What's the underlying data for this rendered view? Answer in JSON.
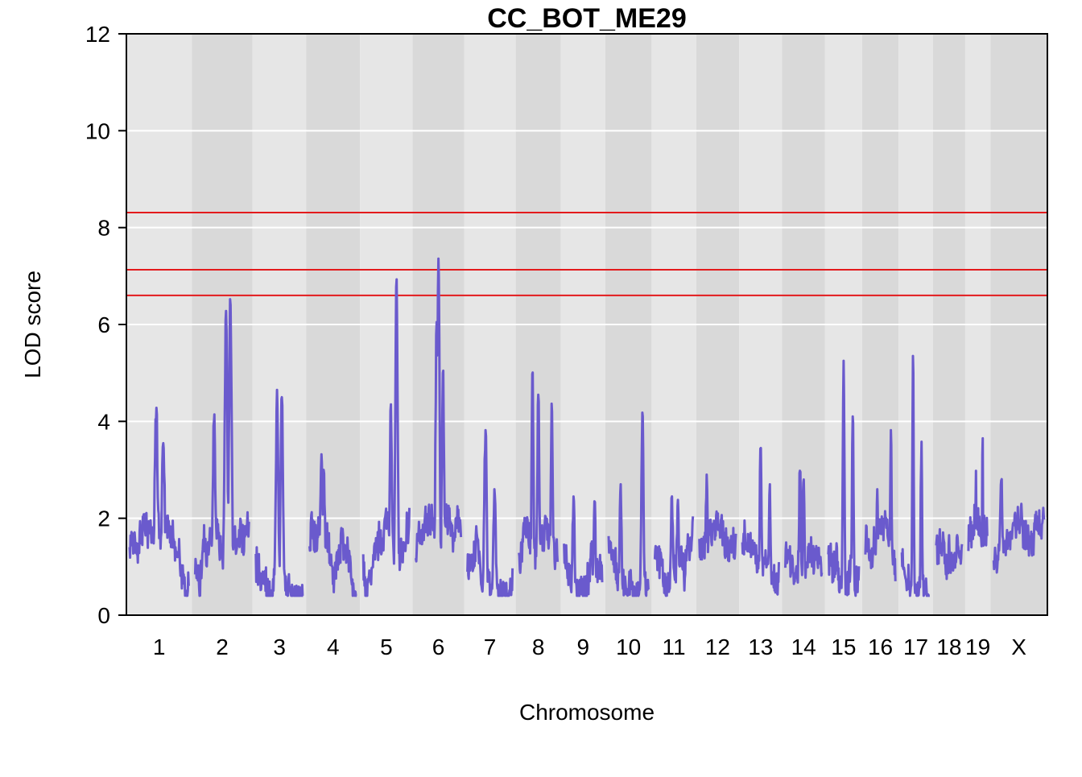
{
  "chart_data": {
    "type": "line",
    "title": "CC_BOT_ME29",
    "xlabel": "Chromosome",
    "ylabel": "LOD score",
    "ylim": [
      0,
      12
    ],
    "yticks": [
      0,
      2,
      4,
      6,
      8,
      10,
      12
    ],
    "grid": true,
    "series_color": "#6a5acd",
    "threshold_color": "#e31a1c",
    "thresholds": [
      6.6,
      7.13,
      8.31
    ],
    "chromosomes": [
      {
        "label": "1",
        "peaks": [
          {
            "x": 0.45,
            "lod": 4.28
          },
          {
            "x": 0.57,
            "lod": 3.55
          }
        ]
      },
      {
        "label": "2",
        "peaks": [
          {
            "x": 0.57,
            "lod": 6.28
          },
          {
            "x": 0.65,
            "lod": 6.4
          },
          {
            "x": 0.35,
            "lod": 4.0
          }
        ]
      },
      {
        "label": "3",
        "peaks": [
          {
            "x": 0.45,
            "lod": 4.65
          },
          {
            "x": 0.55,
            "lod": 4.5
          }
        ]
      },
      {
        "label": "4",
        "peaks": [
          {
            "x": 0.25,
            "lod": 3.32
          },
          {
            "x": 0.3,
            "lod": 3.0
          }
        ]
      },
      {
        "label": "5",
        "peaks": [
          {
            "x": 0.6,
            "lod": 4.35
          },
          {
            "x": 0.72,
            "lod": 6.93
          }
        ]
      },
      {
        "label": "6",
        "peaks": [
          {
            "x": 0.46,
            "lod": 6.05
          },
          {
            "x": 0.5,
            "lod": 7.36
          },
          {
            "x": 0.6,
            "lod": 5.0
          }
        ]
      },
      {
        "label": "7",
        "peaks": [
          {
            "x": 0.4,
            "lod": 3.82
          },
          {
            "x": 0.6,
            "lod": 2.6
          }
        ]
      },
      {
        "label": "8",
        "peaks": [
          {
            "x": 0.35,
            "lod": 4.98
          },
          {
            "x": 0.5,
            "lod": 4.55
          },
          {
            "x": 0.85,
            "lod": 4.2
          }
        ]
      },
      {
        "label": "9",
        "peaks": [
          {
            "x": 0.25,
            "lod": 2.45
          },
          {
            "x": 0.8,
            "lod": 2.35
          }
        ]
      },
      {
        "label": "10",
        "peaks": [
          {
            "x": 0.3,
            "lod": 2.7
          },
          {
            "x": 0.85,
            "lod": 4.18
          }
        ]
      },
      {
        "label": "11",
        "peaks": [
          {
            "x": 0.45,
            "lod": 2.45
          },
          {
            "x": 0.6,
            "lod": 2.25
          }
        ]
      },
      {
        "label": "12",
        "peaks": [
          {
            "x": 0.2,
            "lod": 2.9
          },
          {
            "x": 0.6,
            "lod": 2.0
          }
        ]
      },
      {
        "label": "13",
        "peaks": [
          {
            "x": 0.5,
            "lod": 3.45
          },
          {
            "x": 0.75,
            "lod": 2.7
          }
        ]
      },
      {
        "label": "14",
        "peaks": [
          {
            "x": 0.4,
            "lod": 2.98
          },
          {
            "x": 0.5,
            "lod": 2.8
          }
        ]
      },
      {
        "label": "15",
        "peaks": [
          {
            "x": 0.5,
            "lod": 5.25
          },
          {
            "x": 0.8,
            "lod": 4.1
          }
        ]
      },
      {
        "label": "16",
        "peaks": [
          {
            "x": 0.4,
            "lod": 2.6
          },
          {
            "x": 0.85,
            "lod": 3.82
          }
        ]
      },
      {
        "label": "17",
        "peaks": [
          {
            "x": 0.4,
            "lod": 5.35
          },
          {
            "x": 0.7,
            "lod": 3.58
          }
        ]
      },
      {
        "label": "18",
        "peaks": [
          {
            "x": 0.5,
            "lod": 1.65
          }
        ]
      },
      {
        "label": "19",
        "peaks": [
          {
            "x": 0.4,
            "lod": 2.98
          },
          {
            "x": 0.75,
            "lod": 3.65
          }
        ]
      },
      {
        "label": "X",
        "peaks": [
          {
            "x": 0.15,
            "lod": 2.78
          },
          {
            "x": 0.5,
            "lod": 1.8
          }
        ]
      }
    ]
  }
}
